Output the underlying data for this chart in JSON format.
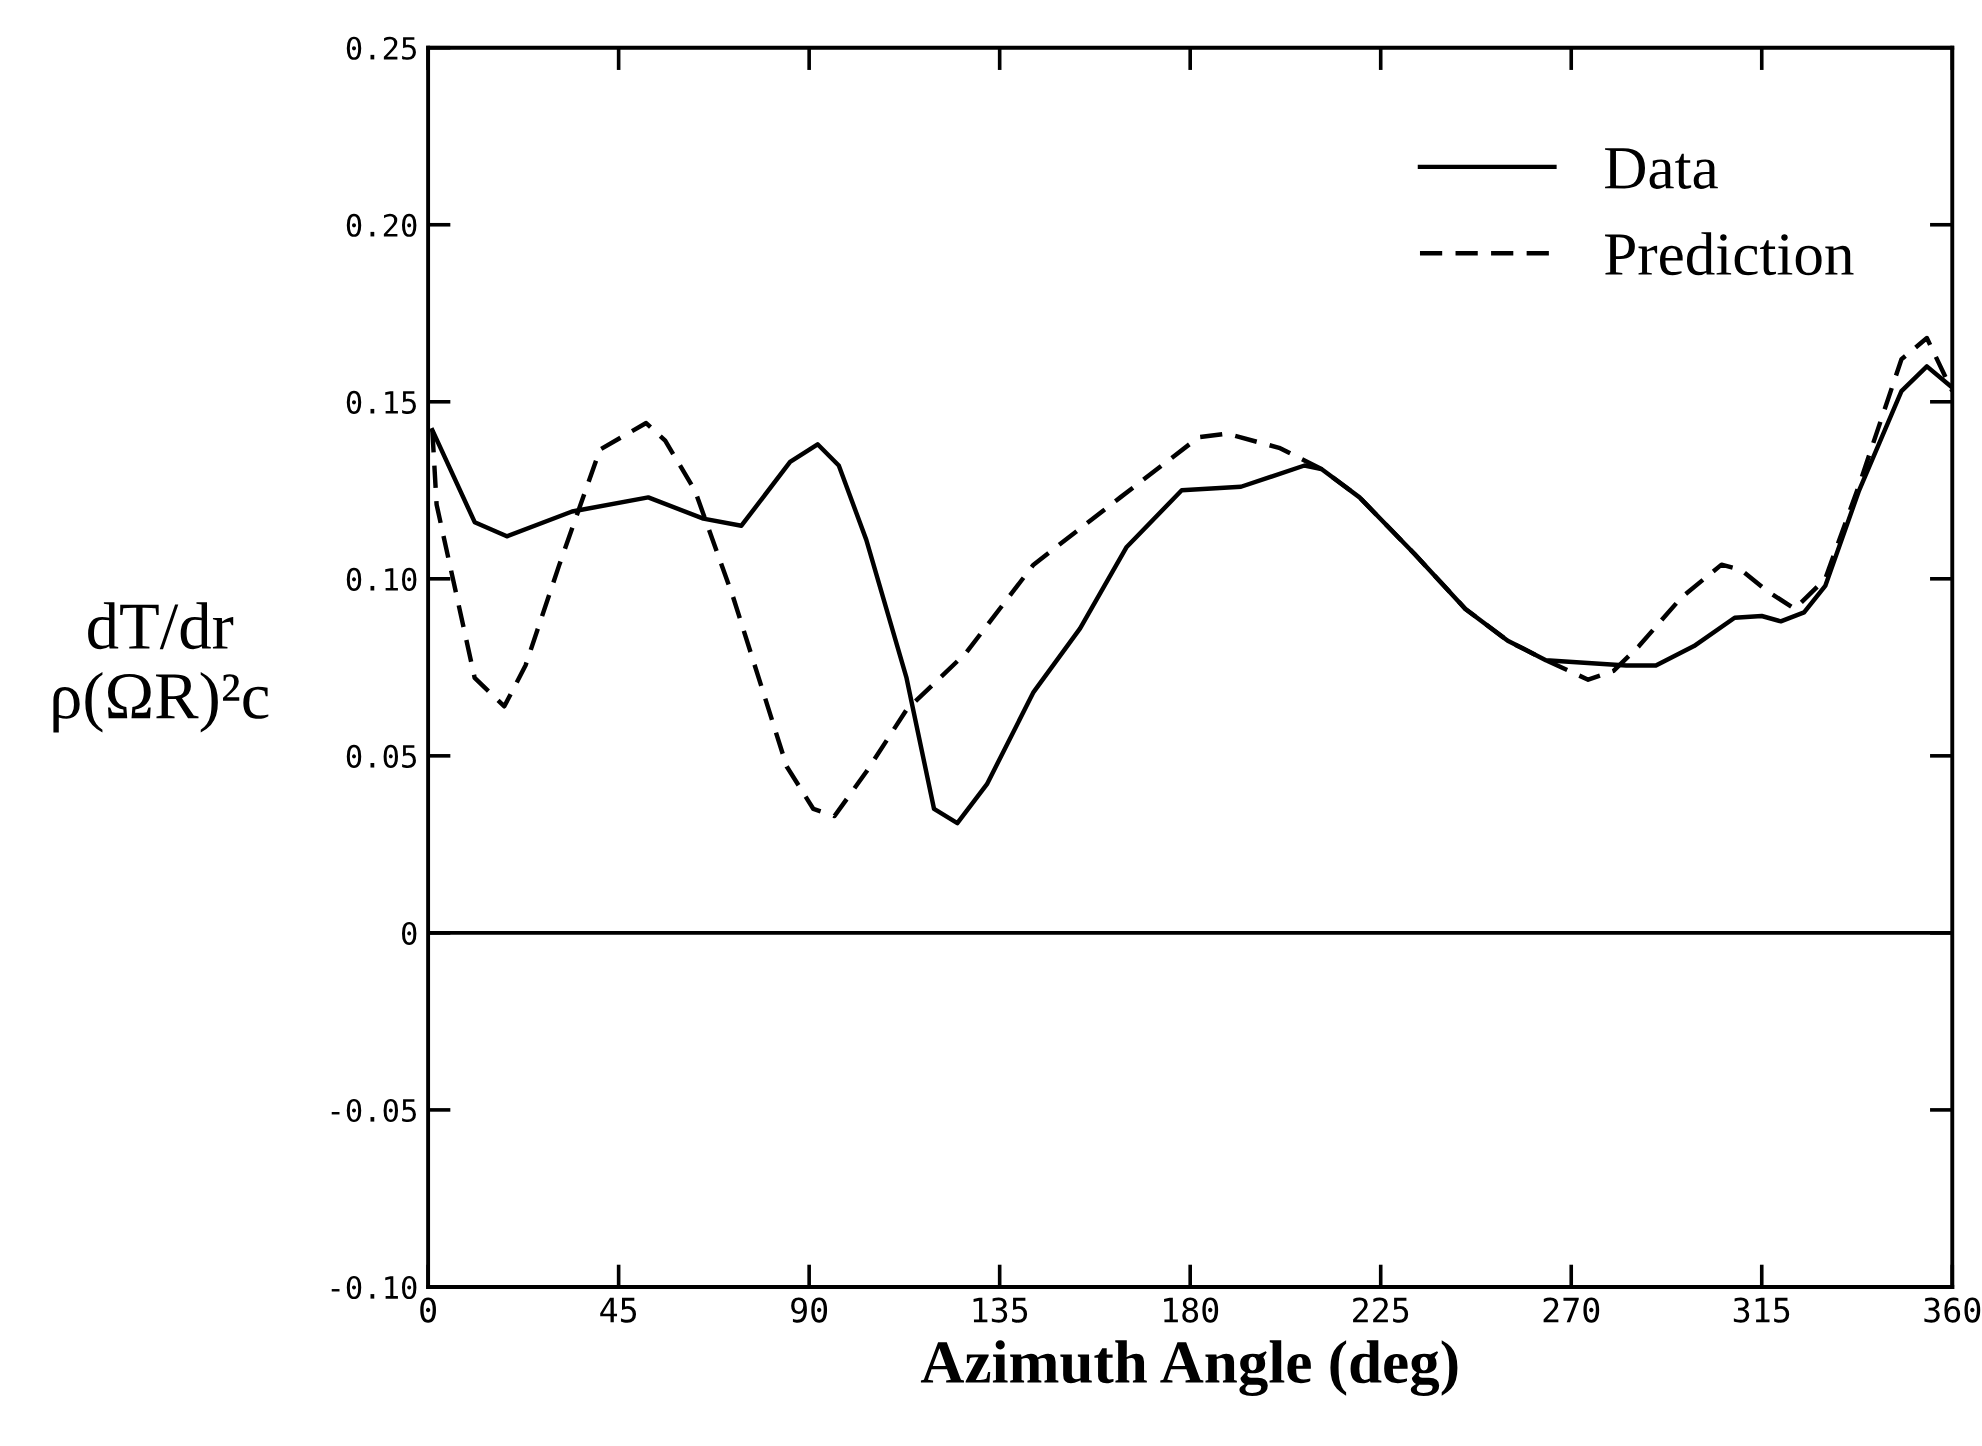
{
  "chart_data": {
    "type": "line",
    "xlabel": "Azimuth Angle (deg)",
    "ylabel": "dT/dr\nρ(ΩR)²c",
    "xlim": [
      0,
      360
    ],
    "xticks": [
      0,
      45,
      90,
      135,
      180,
      225,
      270,
      315,
      360
    ],
    "ylim": [
      -0.1,
      0.25
    ],
    "yticks": [
      {
        "value": -0.1,
        "label": "-0.10"
      },
      {
        "value": -0.05,
        "label": "-0.05"
      },
      0,
      {
        "value": 0.05,
        "label": "0.05"
      },
      {
        "value": 0.1,
        "label": "0.10"
      },
      {
        "value": 0.15,
        "label": "0.15"
      },
      {
        "value": 0.2,
        "label": "0.20"
      },
      {
        "value": 0.25,
        "label": "0.25"
      }
    ],
    "ref_lines": [
      {
        "axis": "y",
        "value": 0,
        "color": "#000000"
      }
    ],
    "grid": false,
    "legend": "top right",
    "series": [
      {
        "name": "Data",
        "color": "#000000",
        "line_style": "solid",
        "x": [
          1,
          11,
          18.6,
          34,
          52,
          65,
          74,
          85.5,
          92,
          97,
          103.5,
          113,
          119.5,
          125,
          132,
          143,
          154,
          165,
          178,
          192,
          207,
          211,
          220,
          233,
          245,
          255,
          264,
          283,
          290,
          299,
          308.6,
          315,
          319.5,
          325,
          330,
          338,
          348,
          354,
          360
        ],
        "values": [
          0.142,
          0.116,
          0.112,
          0.119,
          0.123,
          0.117,
          0.115,
          0.133,
          0.138,
          0.132,
          0.111,
          0.072,
          0.035,
          0.031,
          0.042,
          0.068,
          0.086,
          0.109,
          0.125,
          0.126,
          0.132,
          0.131,
          0.123,
          0.107,
          0.0915,
          0.0825,
          0.077,
          0.0755,
          0.0755,
          0.081,
          0.089,
          0.0895,
          0.088,
          0.0905,
          0.098,
          0.125,
          0.153,
          0.16,
          0.154
        ]
      },
      {
        "name": "Prediction",
        "color": "#000000",
        "line_style": "dashed",
        "x": [
          1,
          2,
          11,
          18,
          23,
          31,
          40.6,
          51.5,
          56,
          63,
          72,
          84.7,
          91,
          96,
          103.5,
          113,
          127,
          143,
          163.5,
          182,
          188.6,
          201,
          211,
          220,
          233,
          245,
          255,
          264,
          274,
          280,
          286,
          296,
          305.5,
          310,
          316,
          322.8,
          330,
          338,
          348,
          354,
          360
        ],
        "values": [
          0.142,
          0.121,
          0.072,
          0.064,
          0.0755,
          0.104,
          0.1365,
          0.144,
          0.139,
          0.125,
          0.095,
          0.047,
          0.035,
          0.033,
          0.0455,
          0.063,
          0.079,
          0.104,
          0.123,
          0.14,
          0.141,
          0.137,
          0.131,
          0.123,
          0.107,
          0.0915,
          0.0825,
          0.077,
          0.0715,
          0.074,
          0.081,
          0.0947,
          0.104,
          0.1026,
          0.0968,
          0.0915,
          0.1,
          0.1265,
          0.162,
          0.168,
          0.153
        ]
      }
    ]
  }
}
